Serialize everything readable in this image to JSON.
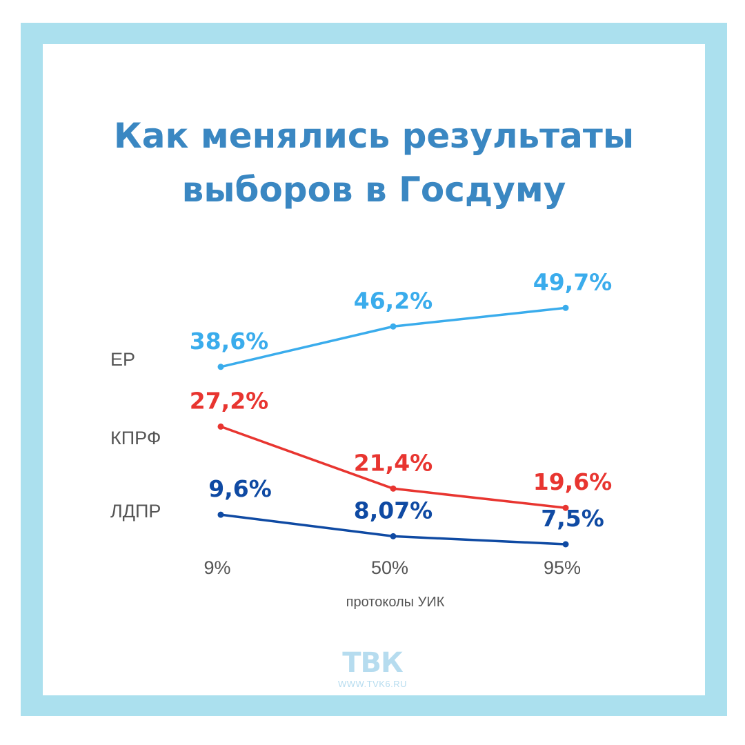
{
  "title": {
    "line1": "Как менялись результаты",
    "line2": "выборов в Госдуму"
  },
  "chart_data": {
    "type": "line",
    "title": "Как менялись результаты выборов в Госдуму",
    "xlabel": "протоколы УИК",
    "ylabel": "",
    "categories": [
      "9%",
      "50%",
      "95%"
    ],
    "ylim": [
      0,
      60
    ],
    "grid": false,
    "legend": "left",
    "series": [
      {
        "name": "ЕР",
        "values": [
          38.6,
          46.2,
          49.7
        ],
        "labels": [
          "38,6%",
          "46,2%",
          "49,7%"
        ],
        "color": "#3aacec"
      },
      {
        "name": "КПРФ",
        "values": [
          27.2,
          21.4,
          19.6
        ],
        "labels": [
          "27,2%",
          "21,4%",
          "19,6%"
        ],
        "color": "#e83530"
      },
      {
        "name": "ЛДПР",
        "values": [
          9.6,
          8.07,
          7.5
        ],
        "labels": [
          "9,6%",
          "8,07%",
          "7,5%"
        ],
        "color": "#0f4aa3"
      }
    ]
  },
  "logo": {
    "mark": "ТВК",
    "url": "WWW.TVK6.RU"
  },
  "colors": {
    "frame": "#abe0ee",
    "title": "#3a87c2"
  }
}
